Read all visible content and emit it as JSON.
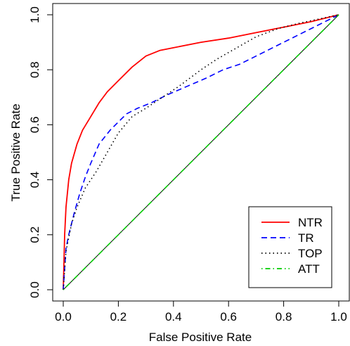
{
  "chart_data": {
    "type": "line",
    "title": "",
    "xlabel": "False Positive Rate",
    "ylabel": "True Positive Rate",
    "xlim": [
      0,
      1
    ],
    "ylim": [
      0,
      1
    ],
    "x_ticks": [
      "0.0",
      "0.2",
      "0.4",
      "0.6",
      "0.8",
      "1.0"
    ],
    "y_ticks": [
      "0.0",
      "0.2",
      "0.4",
      "0.6",
      "0.8",
      "1.0"
    ],
    "grid": false,
    "legend_position": "bottom-right",
    "series": [
      {
        "name": "NTR",
        "color": "#ff0000",
        "line_style": "solid",
        "x": [
          0.0,
          0.005,
          0.01,
          0.02,
          0.03,
          0.05,
          0.07,
          0.1,
          0.13,
          0.16,
          0.2,
          0.25,
          0.3,
          0.35,
          0.4,
          0.5,
          0.6,
          0.7,
          0.8,
          0.9,
          1.0
        ],
        "y": [
          0.0,
          0.2,
          0.3,
          0.4,
          0.46,
          0.53,
          0.58,
          0.63,
          0.68,
          0.72,
          0.76,
          0.81,
          0.85,
          0.87,
          0.88,
          0.9,
          0.915,
          0.935,
          0.955,
          0.975,
          1.0
        ]
      },
      {
        "name": "TR",
        "color": "#0000ff",
        "line_style": "dashed",
        "x": [
          0.0,
          0.01,
          0.02,
          0.04,
          0.06,
          0.08,
          0.1,
          0.13,
          0.17,
          0.21,
          0.23,
          0.27,
          0.32,
          0.38,
          0.45,
          0.52,
          0.58,
          0.64,
          0.7,
          0.8,
          0.9,
          1.0
        ],
        "y": [
          0.0,
          0.15,
          0.2,
          0.28,
          0.35,
          0.41,
          0.46,
          0.53,
          0.58,
          0.62,
          0.64,
          0.66,
          0.68,
          0.71,
          0.74,
          0.77,
          0.8,
          0.82,
          0.85,
          0.9,
          0.95,
          1.0
        ]
      },
      {
        "name": "TOP",
        "color": "#000000",
        "line_style": "dotted",
        "x": [
          0.0,
          0.01,
          0.03,
          0.05,
          0.08,
          0.12,
          0.16,
          0.2,
          0.25,
          0.3,
          0.36,
          0.42,
          0.5,
          0.56,
          0.63,
          0.7,
          0.78,
          0.86,
          0.93,
          1.0
        ],
        "y": [
          0.0,
          0.14,
          0.24,
          0.3,
          0.37,
          0.43,
          0.5,
          0.57,
          0.63,
          0.66,
          0.7,
          0.74,
          0.8,
          0.84,
          0.88,
          0.92,
          0.95,
          0.97,
          0.985,
          1.0
        ]
      },
      {
        "name": "ATT",
        "color": "#00cc00",
        "line_style": "dotdash",
        "x": [
          0.0,
          1.0
        ],
        "y": [
          0.0,
          1.0
        ]
      }
    ],
    "reference_line": {
      "from": [
        0,
        0
      ],
      "to": [
        1,
        1
      ],
      "color": "#000000"
    }
  }
}
